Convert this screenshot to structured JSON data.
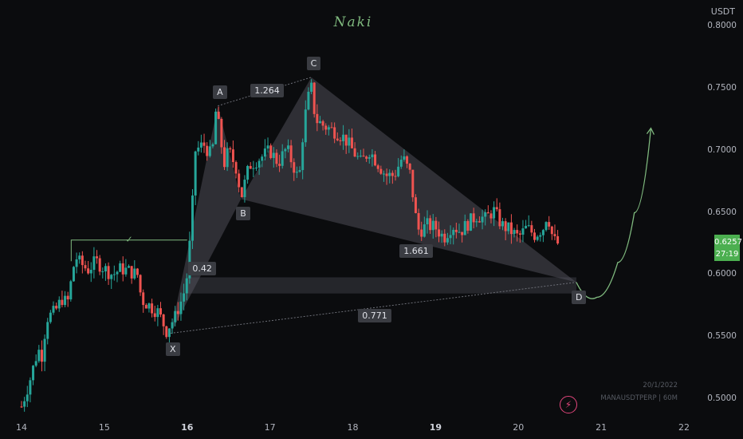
{
  "header": {
    "brand": "Naki",
    "unit": "USDT"
  },
  "price_label": {
    "price": "0.6257",
    "countdown": "27:19",
    "color": "#4caf50"
  },
  "watermark": {
    "date": "20/1/2022",
    "symbol": "MANAUSDTPERP | 60M"
  },
  "icons": {
    "bolt": "lightning-bolt-icon"
  },
  "colors": {
    "up": "#26a69a",
    "down": "#ef5350",
    "pattern_fill": "#5a5c66",
    "projection": "#7fb97e"
  },
  "chart_data": {
    "type": "candlestick",
    "title": "",
    "ylim": [
      0.49,
      0.81
    ],
    "y_ticks": [
      "0.8000",
      "0.7500",
      "0.7000",
      "0.6500",
      "0.6000",
      "0.5500",
      "0.5000"
    ],
    "x_ticks": [
      "14",
      "15",
      "16",
      "17",
      "18",
      "19",
      "20",
      "21",
      "22"
    ],
    "x_ticks_major": [
      "16",
      "19"
    ],
    "grid": false,
    "close_path": [
      [
        14.0,
        0.494
      ],
      [
        14.1,
        0.515
      ],
      [
        14.2,
        0.54
      ],
      [
        14.25,
        0.535
      ],
      [
        14.3,
        0.565
      ],
      [
        14.4,
        0.57
      ],
      [
        14.5,
        0.582
      ],
      [
        14.55,
        0.575
      ],
      [
        14.6,
        0.595
      ],
      [
        14.65,
        0.615
      ],
      [
        14.7,
        0.61
      ],
      [
        14.8,
        0.604
      ],
      [
        14.9,
        0.611
      ],
      [
        15.0,
        0.605
      ],
      [
        15.1,
        0.6
      ],
      [
        15.2,
        0.605
      ],
      [
        15.3,
        0.603
      ],
      [
        15.4,
        0.6
      ],
      [
        15.45,
        0.58
      ],
      [
        15.55,
        0.575
      ],
      [
        15.65,
        0.57
      ],
      [
        15.75,
        0.555
      ],
      [
        15.8,
        0.561
      ],
      [
        15.85,
        0.565
      ],
      [
        15.9,
        0.575
      ],
      [
        15.95,
        0.582
      ],
      [
        16.0,
        0.6
      ],
      [
        16.05,
        0.64
      ],
      [
        16.1,
        0.7
      ],
      [
        16.2,
        0.705
      ],
      [
        16.3,
        0.695
      ],
      [
        16.35,
        0.735
      ],
      [
        16.4,
        0.71
      ],
      [
        16.45,
        0.69
      ],
      [
        16.5,
        0.7
      ],
      [
        16.6,
        0.685
      ],
      [
        16.65,
        0.662
      ],
      [
        16.75,
        0.688
      ],
      [
        16.9,
        0.695
      ],
      [
        17.0,
        0.7
      ],
      [
        17.1,
        0.69
      ],
      [
        17.2,
        0.702
      ],
      [
        17.3,
        0.685
      ],
      [
        17.35,
        0.675
      ],
      [
        17.4,
        0.715
      ],
      [
        17.45,
        0.74
      ],
      [
        17.5,
        0.75
      ],
      [
        17.55,
        0.725
      ],
      [
        17.65,
        0.72
      ],
      [
        17.8,
        0.715
      ],
      [
        17.9,
        0.71
      ],
      [
        18.0,
        0.7
      ],
      [
        18.1,
        0.69
      ],
      [
        18.2,
        0.7
      ],
      [
        18.3,
        0.69
      ],
      [
        18.4,
        0.68
      ],
      [
        18.5,
        0.68
      ],
      [
        18.6,
        0.695
      ],
      [
        18.7,
        0.68
      ],
      [
        18.75,
        0.65
      ],
      [
        18.8,
        0.635
      ],
      [
        18.9,
        0.64
      ],
      [
        19.0,
        0.638
      ],
      [
        19.1,
        0.63
      ],
      [
        19.2,
        0.64
      ],
      [
        19.3,
        0.635
      ],
      [
        19.4,
        0.642
      ],
      [
        19.5,
        0.648
      ],
      [
        19.6,
        0.645
      ],
      [
        19.7,
        0.652
      ],
      [
        19.8,
        0.64
      ],
      [
        19.9,
        0.636
      ],
      [
        20.0,
        0.63
      ],
      [
        20.1,
        0.638
      ],
      [
        20.2,
        0.632
      ],
      [
        20.3,
        0.638
      ],
      [
        20.35,
        0.65
      ],
      [
        20.42,
        0.628
      ],
      [
        20.48,
        0.625
      ]
    ],
    "harmonic_points": [
      {
        "name": "X",
        "x": 15.8,
        "y": 0.553
      },
      {
        "name": "A",
        "x": 16.37,
        "y": 0.736
      },
      {
        "name": "B",
        "x": 16.65,
        "y": 0.661
      },
      {
        "name": "C",
        "x": 17.5,
        "y": 0.759
      },
      {
        "name": "D",
        "x": 20.7,
        "y": 0.594
      }
    ],
    "ratios": [
      {
        "label": "1.264",
        "x": 16.9,
        "y": 0.748
      },
      {
        "label": "0.42",
        "x": 16.15,
        "y": 0.605
      },
      {
        "label": "1.661",
        "x": 18.7,
        "y": 0.619
      },
      {
        "label": "0.771",
        "x": 18.2,
        "y": 0.567
      }
    ],
    "zones": [
      {
        "label": "✓",
        "from_x": 14.6,
        "to_x": 16.0,
        "y_top": 0.628,
        "y_bottom": 0.62
      },
      {
        "label": "",
        "from_x": 16.0,
        "to_x": 20.7,
        "y_top": 0.598,
        "y_bottom": 0.585
      }
    ],
    "projection": [
      [
        20.7,
        0.594
      ],
      [
        20.95,
        0.582
      ],
      [
        21.2,
        0.61
      ],
      [
        21.4,
        0.65
      ],
      [
        21.6,
        0.718
      ]
    ]
  }
}
